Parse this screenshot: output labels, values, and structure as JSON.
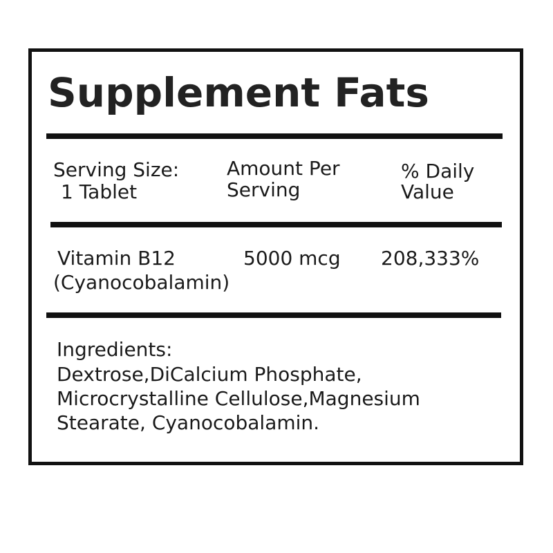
{
  "label": {
    "title": "Supplement Fats",
    "headers": {
      "serving_size_label": "Serving Size:",
      "serving_size_value": "1 Tablet",
      "amount_line1": "Amount Per",
      "amount_line2": "Serving",
      "dv_line1": "% Daily",
      "dv_line2": "Value"
    },
    "nutrient": {
      "name_line1": "Vitamin B12",
      "name_line2": "(Cyanocobalamin)",
      "amount": "5000 mcg",
      "daily_value": "208,333%"
    },
    "ingredients": {
      "heading": "Ingredients:",
      "lines": [
        "Dextrose,DiCalcium Phosphate,",
        "Microcrystalline Cellulose,Magnesium",
        "Stearate, Cyanocobalamin."
      ]
    }
  }
}
